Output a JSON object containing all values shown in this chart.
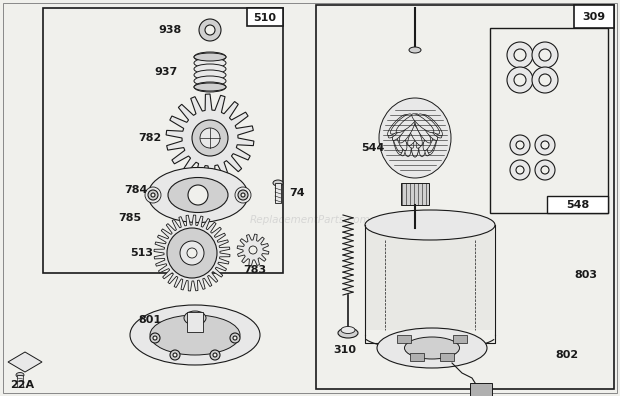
{
  "bg_color": "#f0f0ec",
  "line_color": "#1a1a1a",
  "fill_light": "#e8e8e8",
  "fill_mid": "#d0d0d0",
  "fill_dark": "#b0b0b0",
  "white": "#ffffff",
  "watermark": "ReplacementParts.com",
  "lw": 0.8
}
